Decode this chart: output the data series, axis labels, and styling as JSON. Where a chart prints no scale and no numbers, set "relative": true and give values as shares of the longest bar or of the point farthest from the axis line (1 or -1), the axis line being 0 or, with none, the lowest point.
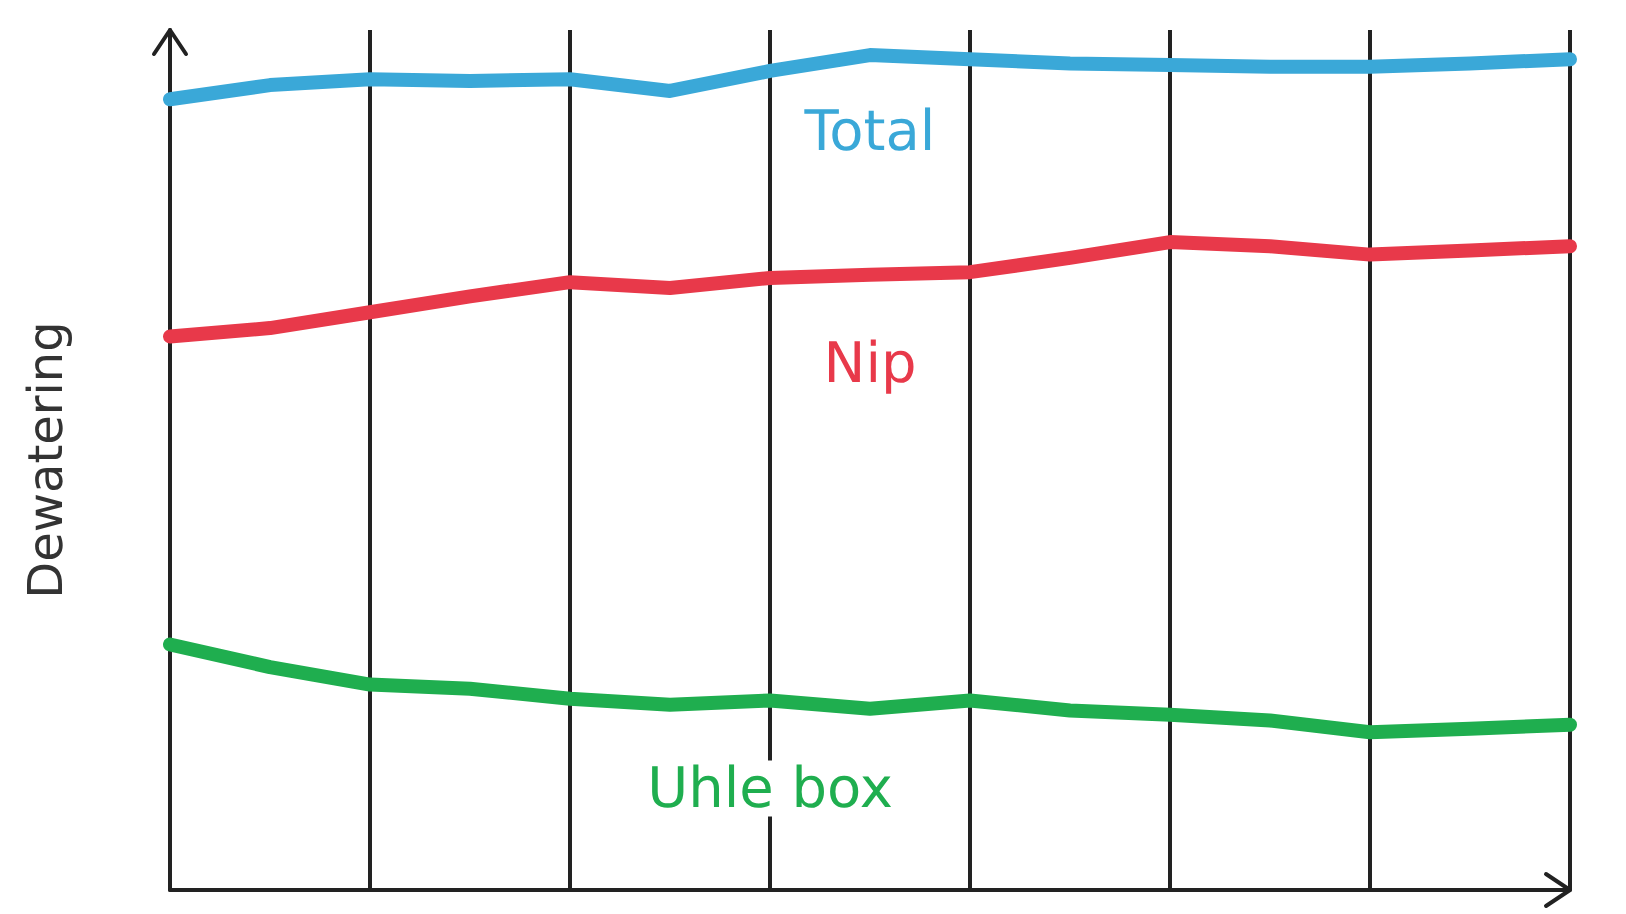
{
  "chart_data": {
    "type": "line",
    "ylabel": "Dewatering",
    "relative": true,
    "grid": "x",
    "tick_labels": false,
    "marker": "none",
    "line_style": "solid",
    "categories": [
      null,
      null,
      null,
      null,
      null,
      null,
      null,
      null,
      null,
      null,
      null,
      null,
      null,
      null,
      null
    ],
    "series": [
      {
        "name": "Total",
        "color": "#3aa8d8",
        "values": [
          0.947,
          0.964,
          0.971,
          0.969,
          0.971,
          0.957,
          0.981,
          1,
          0.995,
          0.99,
          0.988,
          0.986,
          0.986,
          0.99,
          0.995
        ]
      },
      {
        "name": "Nip",
        "color": "#e8394a",
        "values": [
          0.663,
          0.673,
          0.692,
          0.711,
          0.728,
          0.721,
          0.733,
          0.737,
          0.74,
          0.757,
          0.776,
          0.771,
          0.761,
          0.766,
          0.771
        ]
      },
      {
        "name": "Uhle box",
        "color": "#1fae4f",
        "values": [
          0.294,
          0.267,
          0.246,
          0.241,
          0.229,
          0.222,
          0.227,
          0.217,
          0.227,
          0.215,
          0.21,
          0.203,
          0.189,
          0.193,
          0.198
        ]
      }
    ]
  }
}
